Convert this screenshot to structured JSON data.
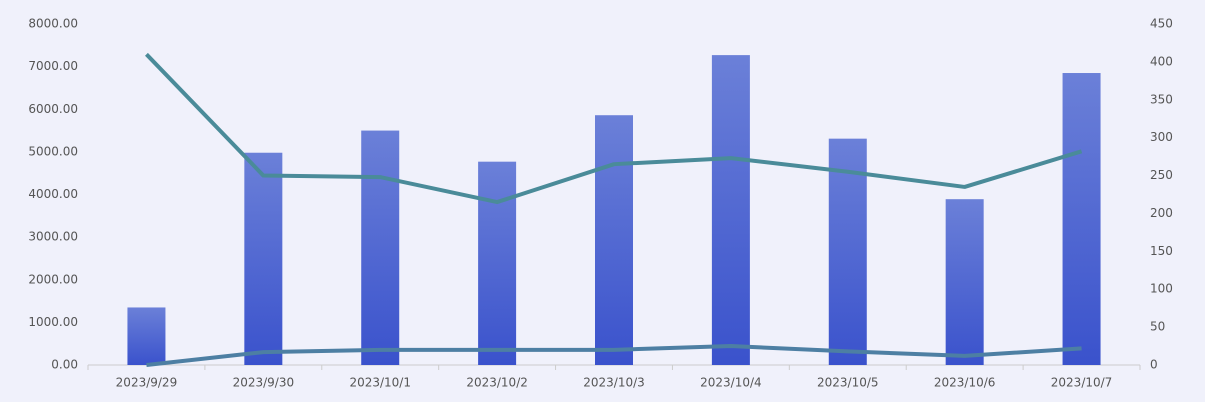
{
  "chart_data": {
    "type": "bar_line",
    "categories": [
      "2023/9/29",
      "2023/9/30",
      "2023/10/1",
      "2023/10/2",
      "2023/10/3",
      "2023/10/4",
      "2023/10/5",
      "2023/10/6",
      "2023/10/7"
    ],
    "series": [
      {
        "type": "bar",
        "color": "#4a63d2",
        "values": [
          1350,
          4980,
          5500,
          4770,
          5860,
          7270,
          5310,
          3890,
          6850
        ]
      },
      {
        "type": "line",
        "axis": "y2",
        "color": "#4a8b99",
        "values": [
          410,
          250,
          248,
          215,
          265,
          273,
          255,
          235,
          282
        ]
      },
      {
        "type": "line",
        "axis": "y2",
        "color": "#4d7fa3",
        "values": [
          0,
          17,
          20,
          20,
          20,
          25,
          18,
          12,
          22
        ]
      }
    ],
    "ylim": [
      0,
      8000
    ],
    "yticks": [
      {
        "value": 0,
        "label": "0.00"
      },
      {
        "value": 1000,
        "label": "1000.00"
      },
      {
        "value": 2000,
        "label": "2000.00"
      },
      {
        "value": 3000,
        "label": "3000.00"
      },
      {
        "value": 4000,
        "label": "4000.00"
      },
      {
        "value": 5000,
        "label": "5000.00"
      },
      {
        "value": 6000,
        "label": "6000.00"
      },
      {
        "value": 7000,
        "label": "7000.00"
      },
      {
        "value": 8000,
        "label": "8000.00"
      }
    ],
    "y2lim": [
      0,
      450
    ],
    "y2ticks": [
      0,
      50,
      100,
      150,
      200,
      250,
      300,
      350,
      400,
      450
    ]
  }
}
